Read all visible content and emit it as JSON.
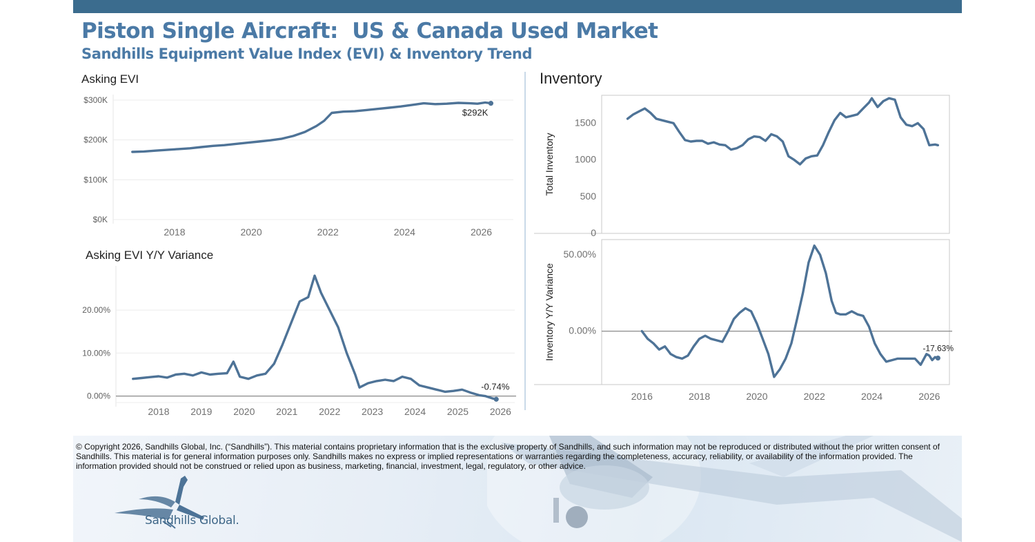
{
  "header": {
    "title": "Piston Single Aircraft:  US & Canada Used Market",
    "subtitle": "Sandhills Equipment Value Index (EVI) & Inventory Trend"
  },
  "colors": {
    "line": "#4e7397",
    "header_bar": "#3b6c8e",
    "title": "#4b7aa6"
  },
  "footer": {
    "copyright": "© Copyright 2026, Sandhills Global, Inc. (“Sandhills”). This material contains proprietary information that is the exclusive property of Sandhills, and such information may not be reproduced or distributed without the prior written consent of Sandhills. This material is for general information purposes only. Sandhills makes no express or implied representations or warranties regarding the completeness, accuracy, reliability, or availability of the information provided. The information provided should not be construed or relied upon as business, marketing, financial, investment, legal, regulatory, or other advice.",
    "logo_text": "Sandhills Global."
  },
  "chart_data": [
    {
      "id": "asking_evi",
      "type": "line",
      "title": "Asking EVI",
      "xlabel": "",
      "ylabel": "",
      "xlim": [
        2016.4,
        2026.8
      ],
      "ylim": [
        0,
        300000
      ],
      "x_ticks": [
        2018,
        2020,
        2022,
        2024,
        2026
      ],
      "y_ticks": [
        0,
        100000,
        200000,
        300000
      ],
      "y_tick_labels": [
        "$0K",
        "$100K",
        "$200K",
        "$300K"
      ],
      "end_label": "$292K",
      "grid": true,
      "series": [
        {
          "x": [
            2016.9,
            2017.2,
            2017.5,
            2017.8,
            2018.1,
            2018.4,
            2018.7,
            2019.0,
            2019.3,
            2019.6,
            2019.9,
            2020.2,
            2020.5,
            2020.8,
            2021.1,
            2021.4,
            2021.7,
            2021.9,
            2022.1,
            2022.4,
            2022.7,
            2023.0,
            2023.3,
            2023.6,
            2023.9,
            2024.2,
            2024.5,
            2024.8,
            2025.1,
            2025.4,
            2025.7,
            2025.9,
            2026.1,
            2026.25
          ],
          "y": [
            170000,
            171000,
            173000,
            175000,
            177000,
            179000,
            182000,
            185000,
            187000,
            190000,
            193000,
            196000,
            199000,
            203000,
            210000,
            220000,
            235000,
            248000,
            268000,
            271000,
            272000,
            275000,
            278000,
            281000,
            284000,
            288000,
            292000,
            290000,
            291000,
            293000,
            292000,
            291000,
            294000,
            292000
          ]
        }
      ]
    },
    {
      "id": "asking_evi_yy",
      "type": "line",
      "title": "Asking EVI Y/Y Variance",
      "xlabel": "",
      "ylabel": "",
      "xlim": [
        2017.0,
        2026.3
      ],
      "ylim": [
        -1.5,
        29
      ],
      "x_ticks": [
        2018,
        2019,
        2020,
        2021,
        2022,
        2023,
        2024,
        2025,
        2026
      ],
      "y_ticks": [
        0,
        10,
        20
      ],
      "y_tick_labels": [
        "0.00%",
        "10.00%",
        "20.00%"
      ],
      "end_label": "-0.74%",
      "grid": true,
      "series": [
        {
          "x": [
            2017.4,
            2017.6,
            2017.8,
            2018.0,
            2018.2,
            2018.4,
            2018.6,
            2018.8,
            2019.0,
            2019.2,
            2019.4,
            2019.6,
            2019.75,
            2019.9,
            2020.1,
            2020.3,
            2020.5,
            2020.7,
            2020.9,
            2021.1,
            2021.3,
            2021.5,
            2021.65,
            2021.8,
            2022.0,
            2022.2,
            2022.4,
            2022.6,
            2022.7,
            2022.9,
            2023.1,
            2023.3,
            2023.5,
            2023.7,
            2023.9,
            2024.1,
            2024.3,
            2024.5,
            2024.7,
            2024.9,
            2025.1,
            2025.3,
            2025.5,
            2025.65,
            2025.8,
            2025.9
          ],
          "y": [
            4.0,
            4.2,
            4.4,
            4.6,
            4.3,
            5.0,
            5.2,
            4.8,
            5.5,
            5.0,
            5.2,
            5.3,
            8.0,
            4.5,
            4.0,
            4.8,
            5.2,
            7.5,
            12.0,
            17.0,
            22.0,
            23.0,
            28.0,
            24.0,
            20.0,
            16.0,
            10.0,
            5.0,
            2.0,
            3.0,
            3.5,
            3.8,
            3.5,
            4.5,
            4.0,
            2.5,
            2.0,
            1.5,
            1.0,
            1.2,
            1.5,
            0.8,
            0.2,
            0.0,
            -0.5,
            -0.74
          ]
        }
      ]
    },
    {
      "id": "inventory",
      "type": "line",
      "title": "Inventory",
      "xlabel": "",
      "ylabel": "Total Inventory",
      "xlim": [
        2014.6,
        2026.7
      ],
      "ylim": [
        0,
        1880
      ],
      "x_ticks": [
        2016,
        2018,
        2020,
        2022,
        2024,
        2026
      ],
      "y_ticks": [
        0,
        500,
        1000,
        1500
      ],
      "y_tick_labels": [
        "0",
        "500",
        "1000",
        "1500"
      ],
      "grid": false,
      "series": [
        {
          "x": [
            2015.5,
            2015.7,
            2015.9,
            2016.1,
            2016.3,
            2016.5,
            2016.7,
            2016.9,
            2017.1,
            2017.3,
            2017.5,
            2017.7,
            2017.9,
            2018.1,
            2018.3,
            2018.5,
            2018.7,
            2018.9,
            2019.1,
            2019.3,
            2019.5,
            2019.7,
            2019.9,
            2020.1,
            2020.3,
            2020.5,
            2020.7,
            2020.9,
            2021.1,
            2021.3,
            2021.5,
            2021.7,
            2021.9,
            2022.1,
            2022.3,
            2022.5,
            2022.7,
            2022.9,
            2023.1,
            2023.3,
            2023.5,
            2023.7,
            2023.9,
            2024.0,
            2024.2,
            2024.4,
            2024.6,
            2024.8,
            2025.0,
            2025.2,
            2025.4,
            2025.6,
            2025.8,
            2026.0,
            2026.2,
            2026.3
          ],
          "y": [
            1560,
            1620,
            1660,
            1700,
            1640,
            1560,
            1540,
            1520,
            1500,
            1380,
            1270,
            1250,
            1260,
            1260,
            1220,
            1240,
            1210,
            1200,
            1140,
            1160,
            1200,
            1280,
            1320,
            1310,
            1260,
            1350,
            1320,
            1250,
            1050,
            1000,
            940,
            1020,
            1050,
            1060,
            1200,
            1380,
            1540,
            1640,
            1580,
            1600,
            1620,
            1700,
            1780,
            1840,
            1720,
            1800,
            1840,
            1820,
            1580,
            1480,
            1460,
            1500,
            1420,
            1200,
            1210,
            1200
          ]
        }
      ]
    },
    {
      "id": "inventory_yy",
      "type": "line",
      "title": "",
      "xlabel": "",
      "ylabel": "Inventory  Y/Y Variance",
      "xlim": [
        2014.6,
        2026.7
      ],
      "ylim": [
        -0.35,
        0.6
      ],
      "x_ticks": [
        2016,
        2018,
        2020,
        2022,
        2024,
        2026
      ],
      "x_tick_labels": [
        "2016",
        "2018",
        "2020",
        "2022",
        "2024",
        "2026"
      ],
      "y_ticks": [
        0,
        0.5
      ],
      "y_tick_labels": [
        "0.00%",
        "50.00%"
      ],
      "end_label": "-17.63%",
      "grid": false,
      "series": [
        {
          "x": [
            2016.0,
            2016.2,
            2016.4,
            2016.6,
            2016.8,
            2017.0,
            2017.2,
            2017.4,
            2017.6,
            2017.8,
            2018.0,
            2018.2,
            2018.4,
            2018.6,
            2018.8,
            2019.0,
            2019.2,
            2019.4,
            2019.6,
            2019.8,
            2020.0,
            2020.2,
            2020.4,
            2020.6,
            2020.8,
            2021.0,
            2021.2,
            2021.4,
            2021.6,
            2021.8,
            2022.0,
            2022.2,
            2022.4,
            2022.6,
            2022.75,
            2022.9,
            2023.1,
            2023.3,
            2023.5,
            2023.7,
            2023.9,
            2024.1,
            2024.3,
            2024.5,
            2024.7,
            2024.9,
            2025.1,
            2025.3,
            2025.5,
            2025.7,
            2025.9,
            2026.0,
            2026.1,
            2026.2,
            2026.3
          ],
          "y": [
            0.0,
            -0.05,
            -0.08,
            -0.12,
            -0.1,
            -0.15,
            -0.17,
            -0.18,
            -0.16,
            -0.1,
            -0.05,
            -0.03,
            -0.05,
            -0.06,
            -0.07,
            0.0,
            0.08,
            0.12,
            0.15,
            0.13,
            0.05,
            -0.05,
            -0.15,
            -0.3,
            -0.25,
            -0.18,
            -0.08,
            0.08,
            0.25,
            0.45,
            0.56,
            0.5,
            0.38,
            0.2,
            0.12,
            0.11,
            0.11,
            0.13,
            0.11,
            0.1,
            0.03,
            -0.08,
            -0.15,
            -0.2,
            -0.19,
            -0.18,
            -0.18,
            -0.18,
            -0.18,
            -0.22,
            -0.15,
            -0.16,
            -0.19,
            -0.17,
            -0.1763
          ]
        }
      ]
    }
  ]
}
